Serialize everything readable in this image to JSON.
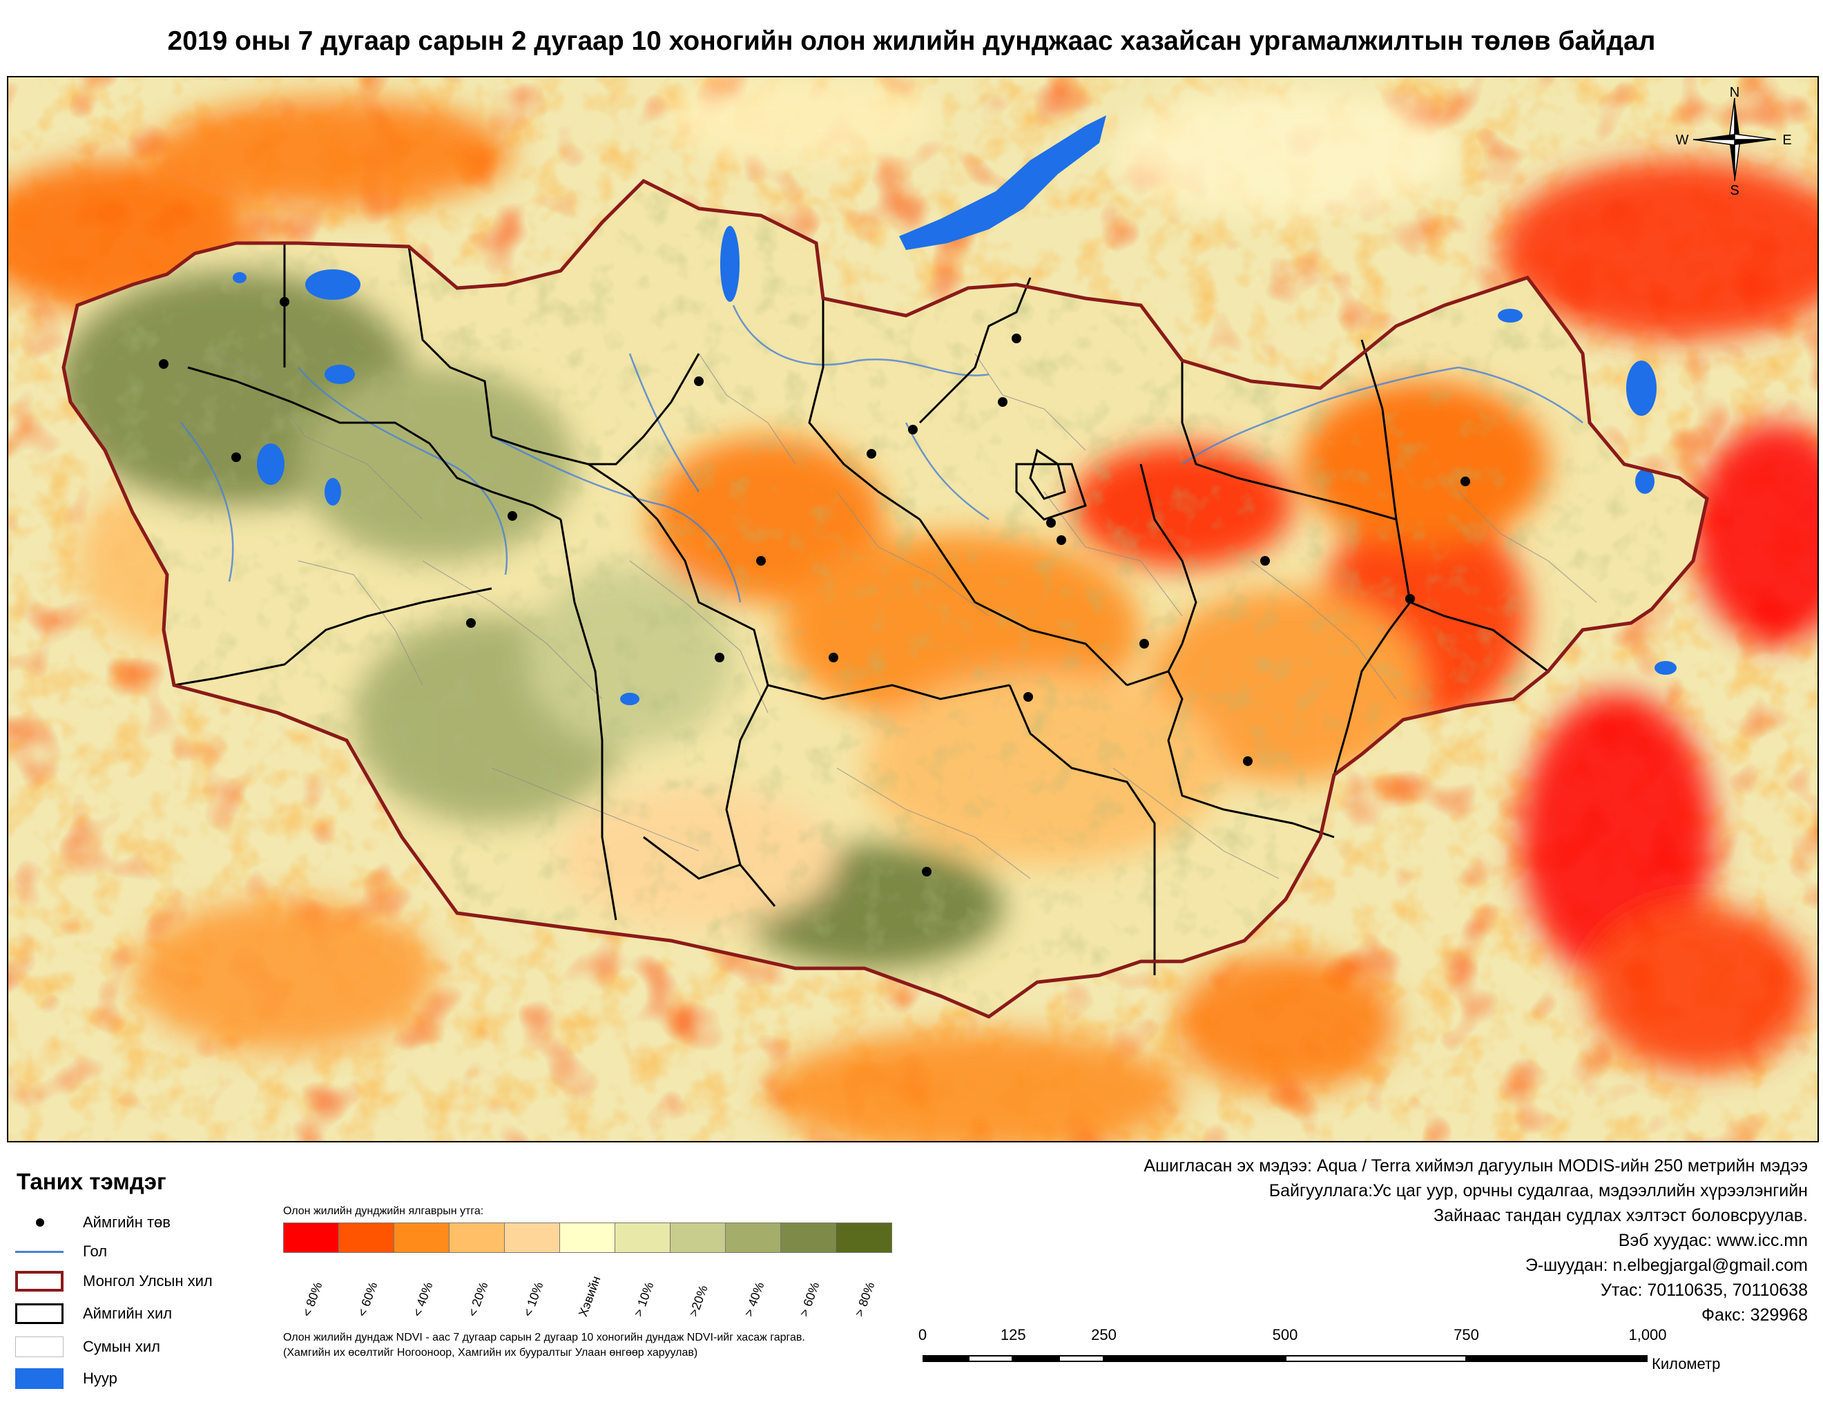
{
  "title": "2019 оны 7 дугаар сарын 2 дугаар 10 хоногийн олон жилийн дунджаас хазайсан ургамалжилтын төлөв байдал",
  "compass": {
    "n": "N",
    "s": "S",
    "w": "W",
    "e": "E"
  },
  "legend": {
    "title": "Таних тэмдэг",
    "items": [
      {
        "label": "Аймгийн төв",
        "symbol": "dot"
      },
      {
        "label": "Гол",
        "symbol": "river"
      },
      {
        "label": "Монгол Улсын хил",
        "symbol": "country-border"
      },
      {
        "label": "Аймгийн хил",
        "symbol": "aimag-border"
      },
      {
        "label": "Сумын хил",
        "symbol": "sum-border"
      },
      {
        "label": "Нуур",
        "symbol": "lake"
      }
    ]
  },
  "ramp": {
    "title": "Олон жилийн дунджийн ялгаврын утга:",
    "classes": [
      {
        "label": "< 80%",
        "color": "#ff0000"
      },
      {
        "label": "< 60%",
        "color": "#ff5500"
      },
      {
        "label": "< 40%",
        "color": "#ff8c1a"
      },
      {
        "label": "< 20%",
        "color": "#ffbf66"
      },
      {
        "label": "< 10%",
        "color": "#ffd699"
      },
      {
        "label": "Хэвийн",
        "color": "#ffffc8"
      },
      {
        "label": "> 10%",
        "color": "#e8e8a8"
      },
      {
        "label": ">20%",
        "color": "#c8cc8c"
      },
      {
        "label": "> 40%",
        "color": "#a4ad6a"
      },
      {
        "label": "> 60%",
        "color": "#7d8a48"
      },
      {
        "label": "> 80%",
        "color": "#5a6b1e"
      }
    ]
  },
  "notes": [
    "Олон жилийн дундаж NDVI - аас 7 дугаар сарын 2 дугаар 10 хоногийн дундаж NDVI-ийг хасаж гаргав.",
    "(Хамгийн их өсөлтийг Ногооноор,  Хамгийн их бууралтыг Улаан өнгөөр харуулав)"
  ],
  "info": [
    "Ашигласан эх мэдээ: Aqua / Terra хиймэл дагуулын MODIS-ийн 250 метрийн мэдээ",
    "Байгууллага:Ус цаг уур, орчны судалгаа, мэдээллийн хүрээлэнгийн",
    "Зайнаас тандан судлах хэлтэст боловсруулав.",
    "Вэб хуудас: www.icc.mn",
    "Э-шуудан: n.elbegjargal@gmail.com",
    "Утас: 70110635, 70110638",
    "Факс: 329968"
  ],
  "scale": {
    "ticks": [
      "0",
      "125",
      "250",
      "500",
      "750",
      "1,000"
    ],
    "tick_values": [
      0,
      125,
      250,
      500,
      750,
      1000
    ],
    "unit": "Километр"
  },
  "colors": {
    "background": "#f2e8b0",
    "lake": "#1e6fe8",
    "river": "#4a7fd6",
    "country_border": "#8a1a1a",
    "aimag_border": "#000000",
    "sum_border": "#8c8c8c"
  }
}
